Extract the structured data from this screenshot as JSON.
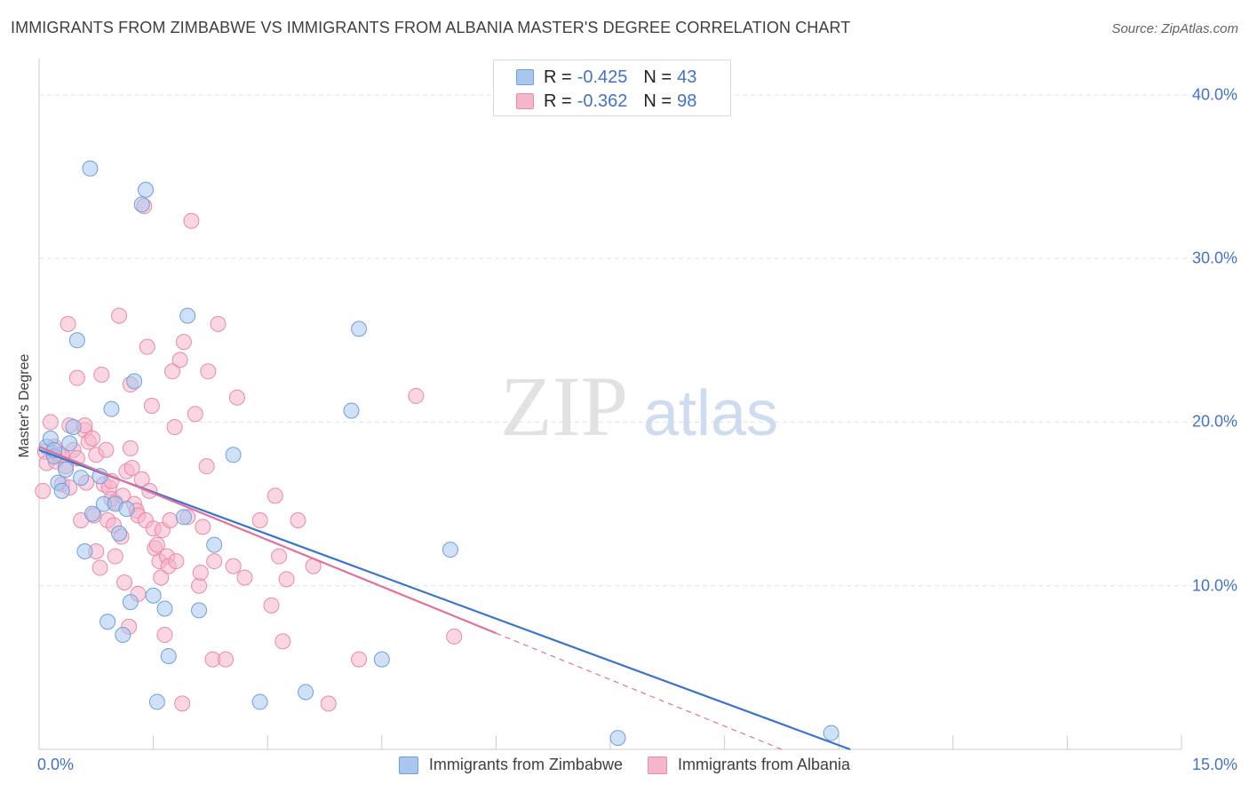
{
  "title": "IMMIGRANTS FROM ZIMBABWE VS IMMIGRANTS FROM ALBANIA MASTER'S DEGREE CORRELATION CHART",
  "source": "Source: ZipAtlas.com",
  "watermark": {
    "zip": "ZIP",
    "atlas": "atlas"
  },
  "legend": {
    "rows": [
      {
        "r_label": "R =",
        "r_value": "-0.425",
        "n_label": "N =",
        "n_value": "43"
      },
      {
        "r_label": "R =",
        "r_value": "-0.362",
        "n_label": "N =",
        "n_value": "98"
      }
    ]
  },
  "colors": {
    "zimbabwe_fill": "#a9c6ef",
    "zimbabwe_stroke": "#6f9fdc",
    "zimbabwe_line": "#3a74cc",
    "albania_fill": "#f5b5ca",
    "albania_stroke": "#e88aa8",
    "albania_line": "#e2709a",
    "axis_text": "#4472c4",
    "grid": "#dde2ea"
  },
  "chart_data": {
    "type": "scatter",
    "title": "IMMIGRANTS FROM ZIMBABWE VS IMMIGRANTS FROM ALBANIA MASTER'S DEGREE CORRELATION CHART",
    "xlabel": "",
    "ylabel": "Master's Degree",
    "xlim": [
      0,
      15
    ],
    "ylim": [
      0,
      42
    ],
    "x_tick_labels": [
      "0.0%",
      "15.0%"
    ],
    "y_ticks": [
      10,
      20,
      30,
      40
    ],
    "y_tick_labels": [
      "10.0%",
      "20.0%",
      "30.0%",
      "40.0%"
    ],
    "grid": true,
    "series": [
      {
        "name": "Immigrants from Zimbabwe",
        "r": -0.425,
        "n": 43,
        "trend": {
          "x": [
            0,
            10.65
          ],
          "y": [
            18.3,
            0
          ]
        },
        "points": [
          [
            0.1,
            18.5
          ],
          [
            0.15,
            19.0
          ],
          [
            0.2,
            17.9
          ],
          [
            0.25,
            16.3
          ],
          [
            0.3,
            15.8
          ],
          [
            0.35,
            17.1
          ],
          [
            0.4,
            18.7
          ],
          [
            0.45,
            19.7
          ],
          [
            0.5,
            25.0
          ],
          [
            0.55,
            16.6
          ],
          [
            0.6,
            12.1
          ],
          [
            0.7,
            14.4
          ],
          [
            0.8,
            16.7
          ],
          [
            0.85,
            15.0
          ],
          [
            0.9,
            7.8
          ],
          [
            0.95,
            20.8
          ],
          [
            1.0,
            15.0
          ],
          [
            1.05,
            13.2
          ],
          [
            1.1,
            7.0
          ],
          [
            1.15,
            14.7
          ],
          [
            1.2,
            9.0
          ],
          [
            1.25,
            22.5
          ],
          [
            1.35,
            33.3
          ],
          [
            1.4,
            34.2
          ],
          [
            1.5,
            9.4
          ],
          [
            1.55,
            2.9
          ],
          [
            1.65,
            8.6
          ],
          [
            1.7,
            5.7
          ],
          [
            1.9,
            14.2
          ],
          [
            1.95,
            26.5
          ],
          [
            2.1,
            8.5
          ],
          [
            2.3,
            12.5
          ],
          [
            2.55,
            18.0
          ],
          [
            2.9,
            2.9
          ],
          [
            3.5,
            3.5
          ],
          [
            4.1,
            20.7
          ],
          [
            4.2,
            25.7
          ],
          [
            4.5,
            5.5
          ],
          [
            5.4,
            12.2
          ],
          [
            7.6,
            0.7
          ],
          [
            10.4,
            1.0
          ],
          [
            0.2,
            18.3
          ],
          [
            0.67,
            35.5
          ]
        ]
      },
      {
        "name": "Immigrants from Albania",
        "r": -0.362,
        "n": 98,
        "trend": {
          "x": [
            0,
            6.0
          ],
          "y": [
            18.5,
            7.1
          ],
          "dashed_extension_to": {
            "x": 10.65,
            "y": -1.7
          }
        },
        "points": [
          [
            0.05,
            15.8
          ],
          [
            0.08,
            18.2
          ],
          [
            0.1,
            17.5
          ],
          [
            0.15,
            20.0
          ],
          [
            0.2,
            18.5
          ],
          [
            0.22,
            17.6
          ],
          [
            0.25,
            18.0
          ],
          [
            0.3,
            16.2
          ],
          [
            0.35,
            17.3
          ],
          [
            0.38,
            26.0
          ],
          [
            0.4,
            19.8
          ],
          [
            0.45,
            18.3
          ],
          [
            0.5,
            17.8
          ],
          [
            0.5,
            22.7
          ],
          [
            0.55,
            14.0
          ],
          [
            0.6,
            19.5
          ],
          [
            0.62,
            16.3
          ],
          [
            0.65,
            18.8
          ],
          [
            0.7,
            19.0
          ],
          [
            0.72,
            14.3
          ],
          [
            0.75,
            12.1
          ],
          [
            0.75,
            18.0
          ],
          [
            0.8,
            11.1
          ],
          [
            0.82,
            22.9
          ],
          [
            0.85,
            16.2
          ],
          [
            0.88,
            18.3
          ],
          [
            0.9,
            14.0
          ],
          [
            0.92,
            16.0
          ],
          [
            0.95,
            15.3
          ],
          [
            0.98,
            13.7
          ],
          [
            1.0,
            15.1
          ],
          [
            1.0,
            11.8
          ],
          [
            1.05,
            26.5
          ],
          [
            1.08,
            13.0
          ],
          [
            1.1,
            15.5
          ],
          [
            1.12,
            10.2
          ],
          [
            1.15,
            17.0
          ],
          [
            1.18,
            7.5
          ],
          [
            1.2,
            22.3
          ],
          [
            1.22,
            17.2
          ],
          [
            1.25,
            15.0
          ],
          [
            1.28,
            14.6
          ],
          [
            1.3,
            14.3
          ],
          [
            1.3,
            9.5
          ],
          [
            1.35,
            16.5
          ],
          [
            1.38,
            33.2
          ],
          [
            1.4,
            14.0
          ],
          [
            1.42,
            24.6
          ],
          [
            1.45,
            15.8
          ],
          [
            1.48,
            21.0
          ],
          [
            1.5,
            13.5
          ],
          [
            1.52,
            12.3
          ],
          [
            1.55,
            12.5
          ],
          [
            1.58,
            11.5
          ],
          [
            1.6,
            10.5
          ],
          [
            1.62,
            13.4
          ],
          [
            1.65,
            7.0
          ],
          [
            1.68,
            11.8
          ],
          [
            1.7,
            11.2
          ],
          [
            1.72,
            14.0
          ],
          [
            1.75,
            23.1
          ],
          [
            1.78,
            19.7
          ],
          [
            1.8,
            11.5
          ],
          [
            1.85,
            23.8
          ],
          [
            1.88,
            2.8
          ],
          [
            1.9,
            24.9
          ],
          [
            1.95,
            14.2
          ],
          [
            2.0,
            32.3
          ],
          [
            2.05,
            20.5
          ],
          [
            2.1,
            10.0
          ],
          [
            2.12,
            10.8
          ],
          [
            2.15,
            13.6
          ],
          [
            2.2,
            17.3
          ],
          [
            2.22,
            23.1
          ],
          [
            2.28,
            5.5
          ],
          [
            2.3,
            11.5
          ],
          [
            2.35,
            26.0
          ],
          [
            2.45,
            5.5
          ],
          [
            2.55,
            11.2
          ],
          [
            2.6,
            21.5
          ],
          [
            2.7,
            10.5
          ],
          [
            2.9,
            14.0
          ],
          [
            3.05,
            8.8
          ],
          [
            3.1,
            15.5
          ],
          [
            3.15,
            11.8
          ],
          [
            3.2,
            6.6
          ],
          [
            3.25,
            10.4
          ],
          [
            3.4,
            14.0
          ],
          [
            3.6,
            11.2
          ],
          [
            3.8,
            2.8
          ],
          [
            4.2,
            5.5
          ],
          [
            4.95,
            21.6
          ],
          [
            5.45,
            6.9
          ],
          [
            0.3,
            18.0
          ],
          [
            0.6,
            19.8
          ],
          [
            0.95,
            16.4
          ],
          [
            1.2,
            18.4
          ],
          [
            0.4,
            16.0
          ]
        ]
      }
    ]
  },
  "bottom_legend": {
    "items": [
      {
        "label": "Immigrants from Zimbabwe"
      },
      {
        "label": "Immigrants from Albania"
      }
    ]
  }
}
